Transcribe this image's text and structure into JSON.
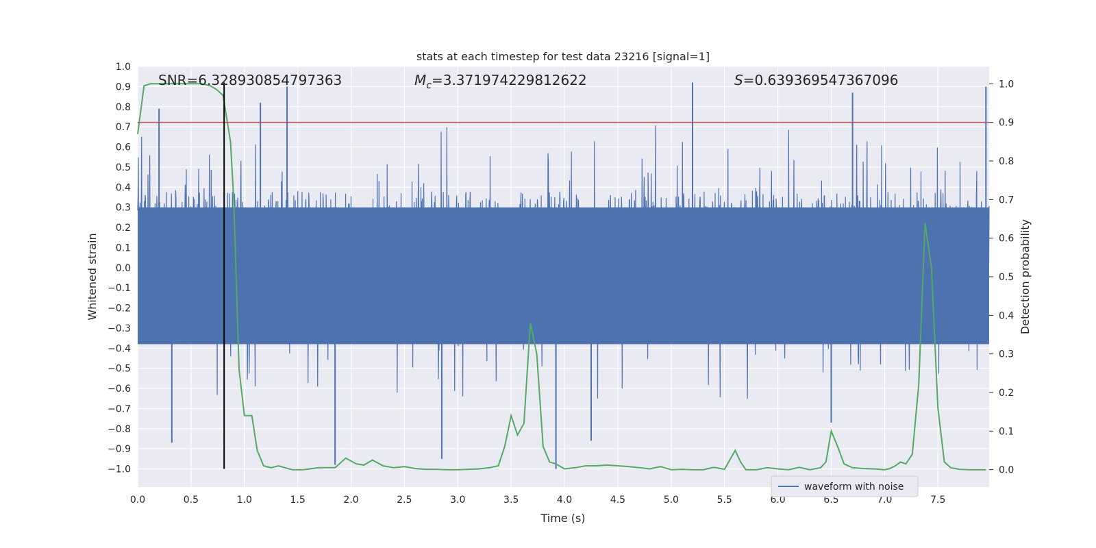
{
  "chart_data": {
    "type": "line",
    "title": "stats at each timestep for test data 23216 [signal=1]",
    "xlabel": "Time (s)",
    "ylabel": "Whitened strain",
    "y2label": "Detection probability",
    "xlim": [
      0.0,
      7.98
    ],
    "ylim": [
      -1.09,
      1.0
    ],
    "y2lim": [
      -0.045,
      1.045
    ],
    "xticks": [
      0.0,
      0.5,
      1.0,
      1.5,
      2.0,
      2.5,
      3.0,
      3.5,
      4.0,
      4.5,
      5.0,
      5.5,
      6.0,
      6.5,
      7.0,
      7.5
    ],
    "xtick_labels": [
      "0.0",
      "0.5",
      "1.0",
      "1.5",
      "2.0",
      "2.5",
      "3.0",
      "3.5",
      "4.0",
      "4.5",
      "5.0",
      "5.5",
      "6.0",
      "6.5",
      "7.0",
      "7.5"
    ],
    "yticks": [
      -1.0,
      -0.9,
      -0.8,
      -0.7,
      -0.6,
      -0.5,
      -0.4,
      -0.3,
      -0.2,
      -0.1,
      0.0,
      0.1,
      0.2,
      0.3,
      0.4,
      0.5,
      0.6,
      0.7,
      0.8,
      0.9,
      1.0
    ],
    "ytick_labels": [
      "−1.0",
      "−0.9",
      "−0.8",
      "−0.7",
      "−0.6",
      "−0.5",
      "−0.4",
      "−0.3",
      "−0.2",
      "−0.1",
      "0.0",
      "0.1",
      "0.2",
      "0.3",
      "0.4",
      "0.5",
      "0.6",
      "0.7",
      "0.8",
      "0.9",
      "1.0"
    ],
    "y2ticks": [
      0.0,
      0.1,
      0.2,
      0.3,
      0.4,
      0.5,
      0.6,
      0.7,
      0.8,
      0.9,
      1.0
    ],
    "y2tick_labels": [
      "0.0",
      "0.1",
      "0.2",
      "0.3",
      "0.4",
      "0.5",
      "0.6",
      "0.7",
      "0.8",
      "0.9",
      "1.0"
    ],
    "annotations": {
      "snr": "SNR=6.328930854797363",
      "mc_symbol": "M",
      "mc_sub": "c",
      "mc_value": "=3.371974229812622",
      "s_symbol": "S",
      "s_value": "=0.639369547367096"
    },
    "threshold": {
      "value": 0.9,
      "axis": "right",
      "color": "#c44e52"
    },
    "marker_line": {
      "x": 0.81,
      "y_from": -1.0,
      "y_to": 0.92,
      "color": "#000000"
    },
    "legend": {
      "label": "waveform with noise",
      "loc": "lower-right"
    },
    "series": [
      {
        "name": "waveform with noise",
        "axis": "left",
        "color": "#4c72b0",
        "envelope": {
          "x_start": 0.0,
          "x_end": 7.98,
          "points": 2400,
          "core_amplitude": 0.38,
          "seed": 23216
        },
        "spikes": [
          {
            "x": 0.2,
            "y": 0.79
          },
          {
            "x": 0.32,
            "y": -0.87
          },
          {
            "x": 1.15,
            "y": 0.82
          },
          {
            "x": 1.4,
            "y": 0.9
          },
          {
            "x": 1.85,
            "y": -0.98
          },
          {
            "x": 2.85,
            "y": -0.95
          },
          {
            "x": 3.92,
            "y": -1.0
          },
          {
            "x": 4.25,
            "y": -0.86
          },
          {
            "x": 5.2,
            "y": 0.92
          },
          {
            "x": 6.5,
            "y": -0.77
          },
          {
            "x": 6.7,
            "y": 0.87
          },
          {
            "x": 7.95,
            "y": 0.9
          }
        ]
      },
      {
        "name": "detection probability",
        "axis": "right",
        "color": "#55a868",
        "x": [
          0.0,
          0.06,
          0.12,
          0.2,
          0.3,
          0.4,
          0.5,
          0.6,
          0.68,
          0.74,
          0.8,
          0.87,
          0.9,
          0.95,
          1.0,
          1.07,
          1.12,
          1.18,
          1.25,
          1.32,
          1.38,
          1.45,
          1.55,
          1.7,
          1.85,
          1.95,
          2.05,
          2.12,
          2.2,
          2.3,
          2.4,
          2.5,
          2.6,
          2.7,
          2.8,
          2.9,
          3.0,
          3.1,
          3.2,
          3.3,
          3.38,
          3.44,
          3.5,
          3.56,
          3.62,
          3.68,
          3.74,
          3.8,
          3.86,
          3.92,
          4.0,
          4.1,
          4.2,
          4.3,
          4.4,
          4.5,
          4.6,
          4.7,
          4.8,
          4.9,
          5.0,
          5.1,
          5.2,
          5.3,
          5.4,
          5.5,
          5.6,
          5.65,
          5.7,
          5.8,
          5.9,
          6.0,
          6.1,
          6.2,
          6.3,
          6.4,
          6.45,
          6.5,
          6.56,
          6.62,
          6.7,
          6.8,
          6.9,
          7.0,
          7.05,
          7.1,
          7.15,
          7.2,
          7.26,
          7.32,
          7.38,
          7.44,
          7.5,
          7.56,
          7.62,
          7.7,
          7.8,
          7.95
        ],
        "y": [
          0.87,
          0.995,
          1.0,
          1.0,
          1.0,
          1.0,
          1.0,
          1.0,
          0.995,
          0.985,
          0.97,
          0.85,
          0.7,
          0.26,
          0.14,
          0.14,
          0.05,
          0.01,
          0.005,
          0.01,
          0.005,
          0.0,
          0.0,
          0.005,
          0.005,
          0.03,
          0.015,
          0.012,
          0.025,
          0.01,
          0.005,
          0.008,
          0.003,
          0.001,
          0.001,
          0.0,
          0.0,
          0.001,
          0.002,
          0.005,
          0.01,
          0.06,
          0.14,
          0.09,
          0.12,
          0.38,
          0.3,
          0.06,
          0.02,
          0.015,
          0.002,
          0.005,
          0.01,
          0.01,
          0.012,
          0.01,
          0.008,
          0.005,
          0.002,
          0.008,
          0.0,
          0.001,
          0.0,
          0.0,
          0.006,
          0.001,
          0.05,
          0.02,
          0.0,
          0.0,
          0.005,
          0.002,
          0.0,
          0.006,
          0.0,
          0.005,
          0.02,
          0.1,
          0.06,
          0.015,
          0.005,
          0.003,
          0.002,
          0.0,
          0.003,
          0.01,
          0.02,
          0.015,
          0.04,
          0.22,
          0.64,
          0.52,
          0.16,
          0.02,
          0.005,
          0.001,
          0.0,
          0.0
        ]
      }
    ]
  }
}
